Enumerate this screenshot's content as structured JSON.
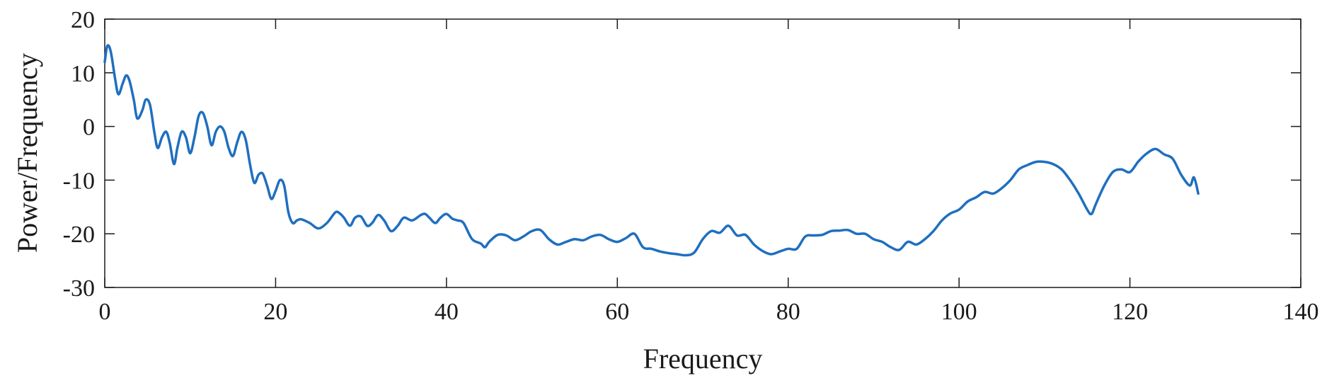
{
  "chart_data": {
    "type": "line",
    "title": "",
    "xlabel": "Frequency",
    "ylabel": "Power/Frequency",
    "xlim": [
      0,
      140
    ],
    "ylim": [
      -30,
      20
    ],
    "xticks": [
      0,
      20,
      40,
      60,
      80,
      100,
      120,
      140
    ],
    "yticks": [
      20,
      10,
      0,
      -10,
      -20,
      -30
    ],
    "xtick_labels": [
      "0",
      "20",
      "40",
      "60",
      "80",
      "100",
      "120",
      "140"
    ],
    "ytick_labels": [
      "20",
      "10",
      "0",
      "-10",
      "-20",
      "-30"
    ],
    "grid": false,
    "line_color": "#1f6fbf",
    "series": [
      {
        "x": [
          0,
          0.3,
          0.7,
          1.2,
          1.6,
          2.1,
          2.5,
          2.9,
          3.4,
          3.8,
          4.4,
          4.8,
          5.3,
          5.8,
          6.2,
          6.7,
          7.2,
          7.6,
          8.1,
          8.5,
          9.0,
          9.5,
          10.0,
          10.5,
          11.0,
          11.5,
          12.0,
          12.5,
          13.0,
          13.5,
          14.0,
          14.5,
          15.0,
          15.5,
          16.0,
          16.5,
          17.0,
          17.5,
          18.0,
          18.5,
          19.0,
          19.5,
          20.0,
          20.5,
          21.0,
          21.5,
          22.0,
          22.5,
          23.0,
          24.0,
          25.0,
          26.0,
          27.0,
          27.5,
          28.0,
          28.7,
          29.3,
          30.0,
          30.7,
          31.3,
          32.0,
          32.7,
          33.5,
          34.3,
          35.0,
          36.0,
          37.0,
          37.5,
          38.0,
          38.7,
          39.3,
          40.0,
          40.7,
          41.3,
          42.0,
          43.0,
          44.0,
          44.5,
          45.0,
          46.0,
          47.0,
          48.0,
          49.0,
          50.0,
          51.0,
          52.0,
          53.0,
          54.0,
          55.0,
          56.0,
          57.0,
          58.0,
          59.0,
          60.0,
          61.0,
          62.0,
          63.0,
          64.0,
          65.0,
          66.0,
          67.0,
          68.0,
          69.0,
          70.0,
          71.0,
          72.0,
          73.0,
          74.0,
          75.0,
          76.0,
          77.0,
          78.0,
          79.0,
          80.0,
          81.0,
          82.0,
          83.0,
          84.0,
          85.0,
          86.0,
          87.0,
          88.0,
          89.0,
          90.0,
          91.0,
          92.0,
          93.0,
          94.0,
          95.0,
          96.0,
          97.0,
          98.0,
          99.0,
          100.0,
          101.0,
          102.0,
          103.0,
          104.0,
          105.0,
          106.0,
          107.0,
          108.0,
          109.0,
          110.0,
          111.0,
          112.0,
          113.0,
          114.0,
          115.0,
          115.5,
          116.0,
          117.0,
          118.0,
          119.0,
          120.0,
          121.0,
          122.0,
          123.0,
          124.0,
          125.0,
          126.0,
          127.0,
          127.5,
          128.0
        ],
        "y": [
          12,
          15,
          14,
          9,
          6,
          8,
          9.5,
          8.5,
          5,
          1.5,
          3,
          5,
          4,
          -1,
          -4,
          -2,
          -1,
          -3,
          -7,
          -4,
          -1,
          -2,
          -5,
          -2,
          2,
          2.5,
          0,
          -3.5,
          -1,
          0,
          -1,
          -4,
          -5.5,
          -3,
          -1,
          -2.5,
          -7,
          -10.5,
          -9,
          -8.8,
          -11,
          -13.5,
          -12,
          -10,
          -11,
          -16,
          -18,
          -17.5,
          -17.3,
          -18,
          -19,
          -18,
          -16,
          -16.2,
          -17,
          -18.5,
          -17,
          -16.8,
          -18.5,
          -18,
          -16.5,
          -17.5,
          -19.5,
          -18.5,
          -17,
          -17.5,
          -16.5,
          -16.3,
          -17,
          -18,
          -17,
          -16.3,
          -17.2,
          -17.5,
          -18,
          -21,
          -21.8,
          -22.5,
          -21.5,
          -20.2,
          -20.3,
          -21.2,
          -20.5,
          -19.5,
          -19.3,
          -21,
          -22,
          -21.5,
          -21,
          -21.2,
          -20.5,
          -20.2,
          -21,
          -21.5,
          -20.8,
          -20,
          -22.5,
          -22.8,
          -23.3,
          -23.6,
          -23.8,
          -24,
          -23.5,
          -21,
          -19.5,
          -19.8,
          -18.5,
          -20.3,
          -20.2,
          -22,
          -23.2,
          -23.8,
          -23.3,
          -22.8,
          -22.8,
          -20.5,
          -20.3,
          -20.2,
          -19.5,
          -19.4,
          -19.3,
          -20,
          -20,
          -21,
          -21.5,
          -22.5,
          -23,
          -21.5,
          -22,
          -21,
          -19.5,
          -17.5,
          -16.2,
          -15.5,
          -14,
          -13.2,
          -12.2,
          -12.5,
          -11.5,
          -10,
          -8,
          -7.2,
          -6.6,
          -6.6,
          -7,
          -8,
          -10,
          -12.5,
          -15.5,
          -16.3,
          -14.5,
          -11,
          -8.5,
          -8,
          -8.5,
          -6.5,
          -5,
          -4.2,
          -5.2,
          -6,
          -9,
          -11,
          -9.5,
          -12.5
        ]
      }
    ]
  }
}
